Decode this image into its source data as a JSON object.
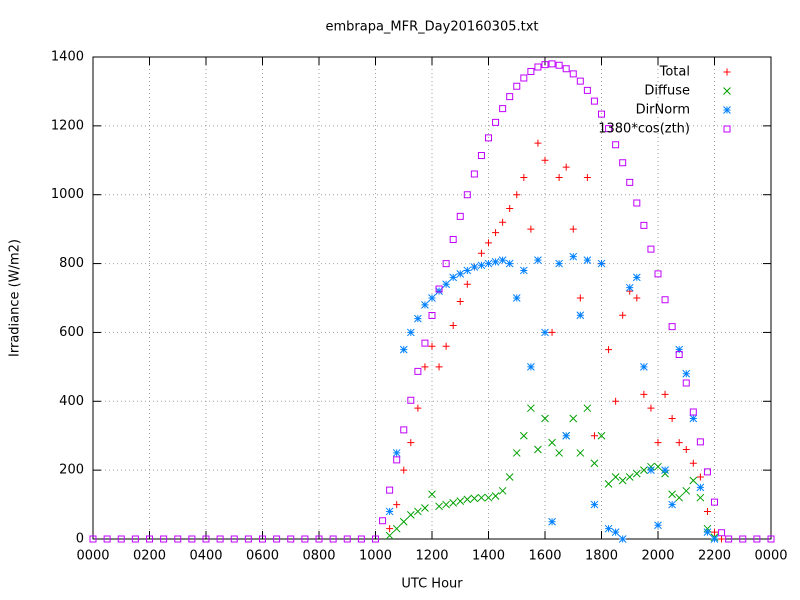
{
  "chart_data": {
    "type": "scatter",
    "title": "embrapa_MFR_Day20160305.txt",
    "x_label": "UTC Hour",
    "y_label": "Irradiance (W/m2)",
    "xlim": [
      0,
      24
    ],
    "ylim": [
      0,
      1400
    ],
    "xticks": [
      {
        "value": 0,
        "label": "0000"
      },
      {
        "value": 2,
        "label": "0200"
      },
      {
        "value": 4,
        "label": "0400"
      },
      {
        "value": 6,
        "label": "0600"
      },
      {
        "value": 8,
        "label": "0800"
      },
      {
        "value": 10,
        "label": "1000"
      },
      {
        "value": 12,
        "label": "1200"
      },
      {
        "value": 14,
        "label": "1400"
      },
      {
        "value": 16,
        "label": "1600"
      },
      {
        "value": 18,
        "label": "1800"
      },
      {
        "value": 20,
        "label": "2000"
      },
      {
        "value": 22,
        "label": "2200"
      },
      {
        "value": 24,
        "label": "0000"
      }
    ],
    "yticks": [
      0,
      200,
      400,
      600,
      800,
      1000,
      1200,
      1400
    ],
    "grid": true,
    "legend": "top-right",
    "series": [
      {
        "name": "Total",
        "color": "#ff0000",
        "marker": "plus",
        "x": [
          10.5,
          10.75,
          11,
          11.25,
          11.5,
          11.75,
          12,
          12.25,
          12.5,
          12.75,
          13,
          13.25,
          13.5,
          13.75,
          14,
          14.25,
          14.5,
          14.75,
          15,
          15.25,
          15.5,
          15.75,
          16,
          16.25,
          16.5,
          16.75,
          17,
          17.25,
          17.5,
          17.75,
          18,
          18.25,
          18.5,
          18.75,
          19,
          19.25,
          19.5,
          19.75,
          20,
          20.25,
          20.5,
          20.75,
          21,
          21.25,
          21.5,
          21.75,
          22,
          22.25
        ],
        "values": [
          30,
          100,
          200,
          280,
          380,
          500,
          560,
          500,
          560,
          620,
          690,
          740,
          790,
          830,
          860,
          890,
          920,
          960,
          1000,
          1050,
          900,
          1150,
          1100,
          600,
          1050,
          1080,
          900,
          700,
          1050,
          300,
          800,
          550,
          400,
          650,
          720,
          700,
          420,
          380,
          280,
          420,
          350,
          280,
          260,
          220,
          180,
          80,
          20,
          0
        ]
      },
      {
        "name": "Diffuse",
        "color": "#00a000",
        "marker": "cross",
        "x": [
          10.5,
          10.75,
          11,
          11.25,
          11.5,
          11.75,
          12,
          12.25,
          12.5,
          12.75,
          13,
          13.25,
          13.5,
          13.75,
          14,
          14.25,
          14.5,
          14.75,
          15,
          15.25,
          15.5,
          15.75,
          16,
          16.25,
          16.5,
          16.75,
          17,
          17.25,
          17.5,
          17.75,
          18,
          18.25,
          18.5,
          18.75,
          19,
          19.25,
          19.5,
          19.75,
          20,
          20.25,
          20.5,
          20.75,
          21,
          21.25,
          21.5,
          21.75,
          22
        ],
        "values": [
          10,
          30,
          50,
          70,
          80,
          90,
          130,
          95,
          100,
          105,
          110,
          115,
          118,
          120,
          120,
          125,
          140,
          180,
          250,
          300,
          380,
          260,
          350,
          280,
          250,
          300,
          350,
          250,
          380,
          220,
          300,
          160,
          180,
          170,
          180,
          190,
          200,
          210,
          210,
          190,
          130,
          120,
          140,
          170,
          120,
          30,
          5
        ]
      },
      {
        "name": "DirNorm",
        "color": "#0080ff",
        "marker": "star",
        "x": [
          10.5,
          10.75,
          11,
          11.25,
          11.5,
          11.75,
          12,
          12.25,
          12.5,
          12.75,
          13,
          13.25,
          13.5,
          13.75,
          14,
          14.25,
          14.5,
          14.75,
          15,
          15.25,
          15.5,
          15.75,
          16,
          16.25,
          16.5,
          16.75,
          17,
          17.25,
          17.5,
          17.75,
          18,
          18.25,
          18.5,
          18.75,
          19,
          19.25,
          19.5,
          19.75,
          20,
          20.25,
          20.5,
          20.75,
          21,
          21.25,
          21.5,
          21.75,
          22
        ],
        "values": [
          80,
          250,
          550,
          600,
          640,
          680,
          700,
          720,
          740,
          760,
          770,
          780,
          790,
          795,
          800,
          805,
          810,
          800,
          700,
          780,
          500,
          810,
          600,
          50,
          800,
          300,
          820,
          650,
          810,
          100,
          800,
          30,
          20,
          0,
          730,
          760,
          500,
          200,
          40,
          200,
          100,
          550,
          480,
          350,
          150,
          20,
          0
        ]
      },
      {
        "name": "1380*cos(zth)",
        "color": "#c000ff",
        "marker": "square",
        "x": [
          0,
          0.5,
          1,
          1.5,
          2,
          2.5,
          3,
          3.5,
          4,
          4.5,
          5,
          5.5,
          6,
          6.5,
          7,
          7.5,
          8,
          8.5,
          9,
          9.5,
          10,
          10.25,
          10.5,
          10.75,
          11,
          11.25,
          11.5,
          11.75,
          12,
          12.25,
          12.5,
          12.75,
          13,
          13.25,
          13.5,
          13.75,
          14,
          14.25,
          14.5,
          14.75,
          15,
          15.25,
          15.5,
          15.75,
          16,
          16.25,
          16.5,
          16.75,
          17,
          17.25,
          17.5,
          17.75,
          18,
          18.25,
          18.5,
          18.75,
          19,
          19.25,
          19.5,
          19.75,
          20,
          20.25,
          20.5,
          20.75,
          21,
          21.25,
          21.5,
          21.75,
          22,
          22.25,
          22.5,
          23,
          23.5,
          24
        ],
        "values": [
          0,
          0,
          0,
          0,
          0,
          0,
          0,
          0,
          0,
          0,
          0,
          0,
          0,
          0,
          0,
          0,
          0,
          0,
          0,
          0,
          0,
          53,
          142,
          230,
          317,
          403,
          487,
          569,
          649,
          726,
          800,
          870,
          937,
          1000,
          1060,
          1114,
          1165,
          1210,
          1250,
          1285,
          1315,
          1339,
          1358,
          1371,
          1378,
          1380,
          1376,
          1366,
          1351,
          1330,
          1303,
          1272,
          1234,
          1192,
          1145,
          1093,
          1036,
          976,
          911,
          842,
          770,
          695,
          617,
          536,
          453,
          369,
          282,
          195,
          107,
          18,
          0,
          0,
          0,
          0
        ]
      }
    ]
  }
}
